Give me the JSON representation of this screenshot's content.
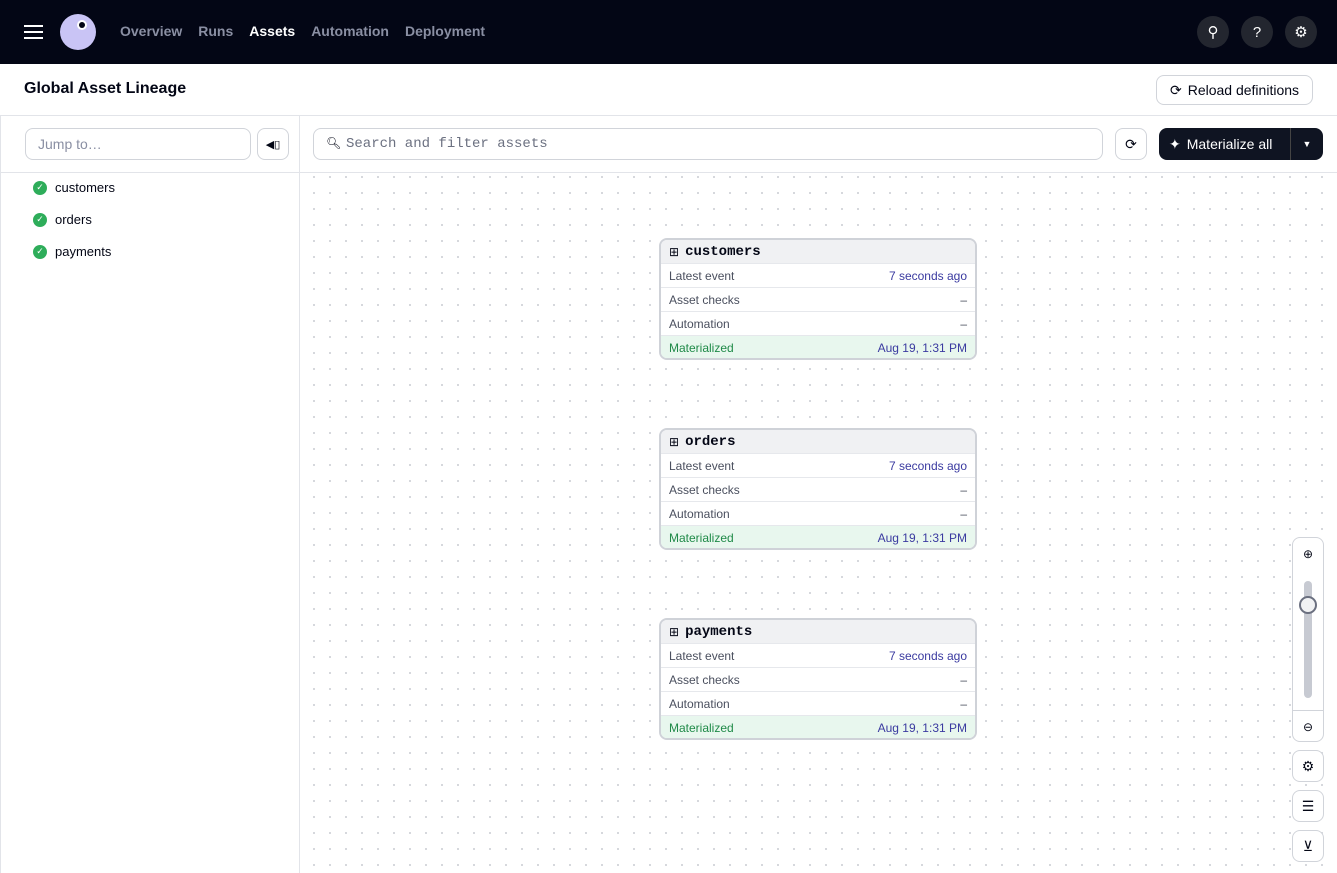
{
  "nav": {
    "items": [
      {
        "label": "Overview",
        "active": false
      },
      {
        "label": "Runs",
        "active": false
      },
      {
        "label": "Assets",
        "active": true
      },
      {
        "label": "Automation",
        "active": false
      },
      {
        "label": "Deployment",
        "active": false
      }
    ]
  },
  "header": {
    "title": "Global Asset Lineage",
    "reload_label": "Reload definitions"
  },
  "sidebar": {
    "jump_placeholder": "Jump to…",
    "items": [
      {
        "label": "customers",
        "status": "success"
      },
      {
        "label": "orders",
        "status": "success"
      },
      {
        "label": "payments",
        "status": "success"
      }
    ]
  },
  "toolbar": {
    "search_placeholder": "Search and filter assets",
    "materialize_label": "Materialize all"
  },
  "assets": [
    {
      "name": "customers",
      "latest_event_label": "Latest event",
      "latest_event": "7 seconds ago",
      "checks_label": "Asset checks",
      "checks": "–",
      "automation_label": "Automation",
      "automation": "–",
      "status": "Materialized",
      "status_time": "Aug 19, 1:31 PM"
    },
    {
      "name": "orders",
      "latest_event_label": "Latest event",
      "latest_event": "7 seconds ago",
      "checks_label": "Asset checks",
      "checks": "–",
      "automation_label": "Automation",
      "automation": "–",
      "status": "Materialized",
      "status_time": "Aug 19, 1:31 PM"
    },
    {
      "name": "payments",
      "latest_event_label": "Latest event",
      "latest_event": "7 seconds ago",
      "checks_label": "Asset checks",
      "checks": "–",
      "automation_label": "Automation",
      "automation": "–",
      "status": "Materialized",
      "status_time": "Aug 19, 1:31 PM"
    }
  ],
  "zoom_level": 0.83,
  "colors": {
    "topbar": "#030615",
    "success": "#2ead5a",
    "link": "#3a3aa0"
  }
}
